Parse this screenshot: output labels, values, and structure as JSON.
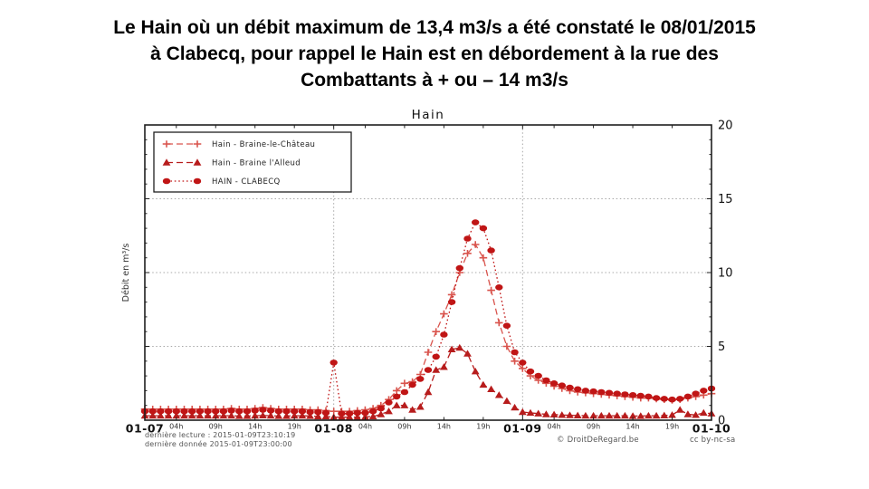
{
  "slide": {
    "title_lines": [
      "Le Hain où un débit maximum de 13,4 m3/s a été constaté le 08/01/2015",
      "à Clabecq, pour rappel le Hain est en débordement à la rue des",
      "Combattants à + ou – 14 m3/s"
    ]
  },
  "chart_data": {
    "type": "line",
    "title": "Hain",
    "xlabel": "",
    "ylabel": "Débit en m³/s",
    "x_unit": "hours from 2015-01-07 00:00",
    "xlim_hours": [
      0,
      72
    ],
    "ylim": [
      0,
      20
    ],
    "yticks": [
      0,
      5,
      10,
      15,
      20
    ],
    "grid": {
      "h_values": [
        5,
        10,
        15
      ],
      "v_hours": [
        24,
        48
      ]
    },
    "legend_position": "upper left",
    "x_day_ticks": [
      {
        "t": 0,
        "label": "01-07"
      },
      {
        "t": 24,
        "label": "01-08"
      },
      {
        "t": 48,
        "label": "01-09"
      },
      {
        "t": 72,
        "label": "01-10"
      }
    ],
    "x_hour_ticks": [
      {
        "t": 4,
        "label": "04h"
      },
      {
        "t": 9,
        "label": "09h"
      },
      {
        "t": 14,
        "label": "14h"
      },
      {
        "t": 19,
        "label": "19h"
      },
      {
        "t": 28,
        "label": "04h"
      },
      {
        "t": 33,
        "label": "09h"
      },
      {
        "t": 38,
        "label": "14h"
      },
      {
        "t": 43,
        "label": "19h"
      },
      {
        "t": 52,
        "label": "04h"
      },
      {
        "t": 57,
        "label": "09h"
      },
      {
        "t": 62,
        "label": "14h"
      },
      {
        "t": 67,
        "label": "19h"
      }
    ],
    "series": [
      {
        "name": "Hain - Braine-le-Château",
        "marker": "plus",
        "linestyle": "dashed",
        "color": "#d9544d",
        "values": [
          0.75,
          0.75,
          0.75,
          0.75,
          0.75,
          0.75,
          0.75,
          0.75,
          0.75,
          0.75,
          0.75,
          0.8,
          0.75,
          0.75,
          0.8,
          0.85,
          0.8,
          0.75,
          0.75,
          0.75,
          0.75,
          0.7,
          0.7,
          0.65,
          0.6,
          0.6,
          0.6,
          0.65,
          0.7,
          0.8,
          1.0,
          1.4,
          2.0,
          2.5,
          2.6,
          3.1,
          4.6,
          6.0,
          7.2,
          8.5,
          10.0,
          11.3,
          11.9,
          11.0,
          8.8,
          6.6,
          5.0,
          4.0,
          3.5,
          3.0,
          2.7,
          2.5,
          2.3,
          2.15,
          2.0,
          1.9,
          1.85,
          1.8,
          1.75,
          1.7,
          1.65,
          1.6,
          1.55,
          1.5,
          1.5,
          1.45,
          1.4,
          1.35,
          1.4,
          1.5,
          1.6,
          1.7,
          1.8
        ]
      },
      {
        "name": "Hain - Braine l'Alleud",
        "marker": "triangle",
        "linestyle": "dashed",
        "color": "#b71c1c",
        "values": [
          0.3,
          0.3,
          0.3,
          0.3,
          0.3,
          0.3,
          0.3,
          0.3,
          0.3,
          0.3,
          0.3,
          0.3,
          0.28,
          0.28,
          0.3,
          0.32,
          0.3,
          0.28,
          0.28,
          0.3,
          0.3,
          0.28,
          0.25,
          0.25,
          0.2,
          0.2,
          0.2,
          0.2,
          0.22,
          0.25,
          0.4,
          0.6,
          1.0,
          1.0,
          0.7,
          0.9,
          1.9,
          3.4,
          3.6,
          4.8,
          4.9,
          4.5,
          3.3,
          2.4,
          2.1,
          1.7,
          1.3,
          0.85,
          0.55,
          0.5,
          0.45,
          0.4,
          0.38,
          0.35,
          0.33,
          0.32,
          0.3,
          0.3,
          0.3,
          0.3,
          0.3,
          0.3,
          0.28,
          0.28,
          0.3,
          0.3,
          0.32,
          0.35,
          0.7,
          0.4,
          0.35,
          0.5,
          0.45
        ]
      },
      {
        "name": "HAIN - CLABECQ",
        "marker": "circle",
        "linestyle": "dotted",
        "color": "#c01515",
        "values": [
          0.6,
          0.6,
          0.6,
          0.6,
          0.6,
          0.6,
          0.6,
          0.6,
          0.6,
          0.6,
          0.6,
          0.65,
          0.6,
          0.6,
          0.65,
          0.7,
          0.65,
          0.6,
          0.6,
          0.6,
          0.6,
          0.55,
          0.55,
          0.5,
          3.9,
          0.45,
          0.45,
          0.5,
          0.5,
          0.6,
          0.8,
          1.2,
          1.6,
          1.9,
          2.4,
          2.8,
          3.4,
          4.3,
          5.8,
          8.0,
          10.3,
          12.3,
          13.4,
          13.0,
          11.5,
          9.0,
          6.4,
          4.6,
          3.9,
          3.3,
          3.0,
          2.7,
          2.5,
          2.35,
          2.2,
          2.1,
          2.0,
          1.95,
          1.9,
          1.85,
          1.8,
          1.75,
          1.7,
          1.65,
          1.6,
          1.5,
          1.45,
          1.4,
          1.45,
          1.6,
          1.8,
          2.0,
          2.15
        ]
      }
    ]
  },
  "footer": {
    "last_read": "dernière lecture : 2015-01-09T23:10:19",
    "last_data": "dernière donnée  2015-01-09T23:00:00",
    "copyright": "© DroitDeRegard.be",
    "license": "cc by-nc-sa"
  }
}
